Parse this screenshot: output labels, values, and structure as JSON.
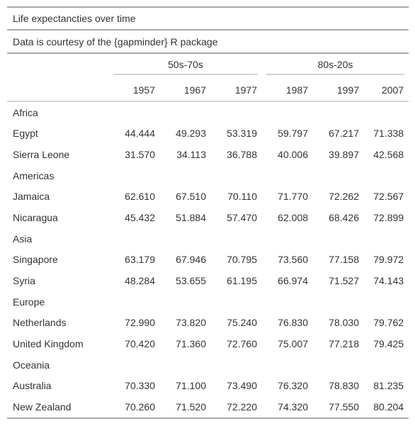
{
  "table": {
    "title": "Life expectancties over time",
    "subtitle": "Data is courtesy of the {gapminder} R package",
    "spanners": [
      "50s-70s",
      "80s-20s"
    ],
    "columns": [
      "1957",
      "1967",
      "1977",
      "1987",
      "1997",
      "2007"
    ],
    "groups": [
      {
        "name": "Africa",
        "rows": [
          {
            "country": "Egypt",
            "values": [
              "44.444",
              "49.293",
              "53.319",
              "59.797",
              "67.217",
              "71.338"
            ]
          },
          {
            "country": "Sierra Leone",
            "values": [
              "31.570",
              "34.113",
              "36.788",
              "40.006",
              "39.897",
              "42.568"
            ]
          }
        ]
      },
      {
        "name": "Americas",
        "rows": [
          {
            "country": "Jamaica",
            "values": [
              "62.610",
              "67.510",
              "70.110",
              "71.770",
              "72.262",
              "72.567"
            ]
          },
          {
            "country": "Nicaragua",
            "values": [
              "45.432",
              "51.884",
              "57.470",
              "62.008",
              "68.426",
              "72.899"
            ]
          }
        ]
      },
      {
        "name": "Asia",
        "rows": [
          {
            "country": "Singapore",
            "values": [
              "63.179",
              "67.946",
              "70.795",
              "73.560",
              "77.158",
              "79.972"
            ]
          },
          {
            "country": "Syria",
            "values": [
              "48.284",
              "53.655",
              "61.195",
              "66.974",
              "71.527",
              "74.143"
            ]
          }
        ]
      },
      {
        "name": "Europe",
        "rows": [
          {
            "country": "Netherlands",
            "values": [
              "72.990",
              "73.820",
              "75.240",
              "76.830",
              "78.030",
              "79.762"
            ]
          },
          {
            "country": "United Kingdom",
            "values": [
              "70.420",
              "71.360",
              "72.760",
              "75.007",
              "77.218",
              "79.425"
            ]
          }
        ]
      },
      {
        "name": "Oceania",
        "rows": [
          {
            "country": "Australia",
            "values": [
              "70.330",
              "71.100",
              "73.490",
              "76.320",
              "78.830",
              "81.235"
            ]
          },
          {
            "country": "New Zealand",
            "values": [
              "70.260",
              "71.520",
              "72.220",
              "74.320",
              "77.550",
              "80.204"
            ]
          }
        ]
      }
    ]
  }
}
